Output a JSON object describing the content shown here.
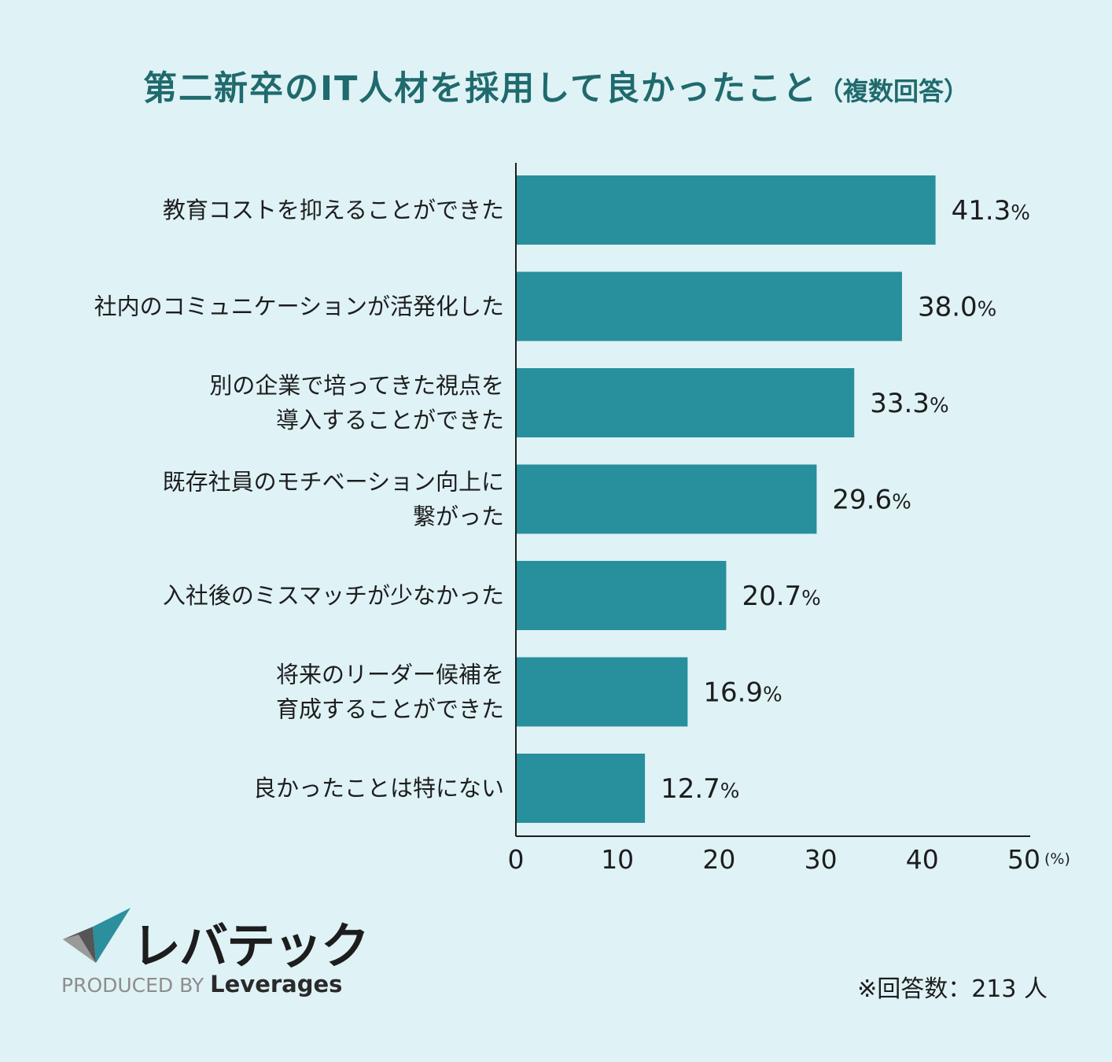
{
  "title": "第二新卒のIT人材を採用して良かったこと",
  "subtitle": "（複数回答）",
  "chart_data": {
    "type": "bar",
    "orientation": "horizontal",
    "categories": [
      [
        "教育コストを抑えることができた"
      ],
      [
        "社内のコミュニケーションが活発化した"
      ],
      [
        "別の企業で培ってきた視点を",
        "導入することができた"
      ],
      [
        "既存社員のモチベーション向上に",
        "繋がった"
      ],
      [
        "入社後のミスマッチが少なかった"
      ],
      [
        "将来のリーダー候補を",
        "育成することができた"
      ],
      [
        "良かったことは特にない"
      ]
    ],
    "values": [
      41.3,
      38.0,
      33.3,
      29.6,
      20.7,
      16.9,
      12.7
    ],
    "value_labels": [
      "41.3",
      "38.0",
      "33.3",
      "29.6",
      "20.7",
      "16.9",
      "12.7"
    ],
    "value_suffix": "%",
    "xlim": [
      0,
      50
    ],
    "xticks": [
      "0",
      "10",
      "20",
      "30",
      "40",
      "50"
    ],
    "xunit": "(%)",
    "bar_color": "#288f9c",
    "grid": false
  },
  "logo": {
    "name": "レバテック",
    "produced_by": "PRODUCED BY",
    "brand": "Leverages"
  },
  "footnote": "※回答数：213 人"
}
